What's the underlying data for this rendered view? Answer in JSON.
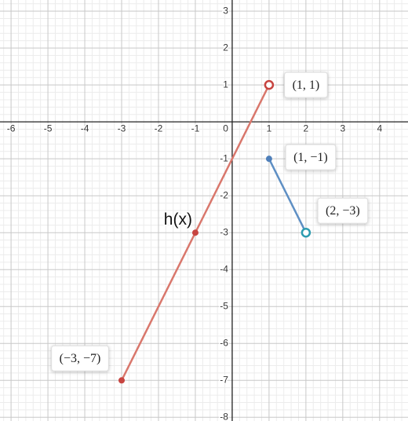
{
  "chart_data": {
    "type": "line",
    "xlim": [
      -6.3,
      4.77
    ],
    "ylim": [
      -8.1,
      3.3
    ],
    "xticks": [
      -6,
      -5,
      -4,
      -3,
      -2,
      -1,
      0,
      1,
      2,
      3,
      4
    ],
    "yticks": [
      3,
      2,
      1,
      -1,
      -2,
      -3,
      -4,
      -5,
      -6,
      -7,
      -8
    ],
    "grid": true,
    "minor_grid": 5,
    "series": [
      {
        "name": "h(x)",
        "color": "#d9776c",
        "marker_colors": [
          "#c74440",
          "#c74440",
          "#c74440"
        ],
        "x": [
          -3,
          -1,
          1
        ],
        "values": [
          -7,
          -3,
          1
        ],
        "markers": [
          "filled",
          "filled",
          "open"
        ],
        "value_labels": [
          "(−3, −7)",
          null,
          "(1, 1)"
        ]
      },
      {
        "color": "#5e8fc4",
        "marker_colors": [
          "#4f7fba",
          "#2d9cb0"
        ],
        "x": [
          1,
          2
        ],
        "values": [
          -1,
          -3
        ],
        "markers": [
          "filled",
          "open"
        ],
        "value_labels": [
          "(1, −1)",
          "(2, −3)"
        ]
      }
    ]
  }
}
